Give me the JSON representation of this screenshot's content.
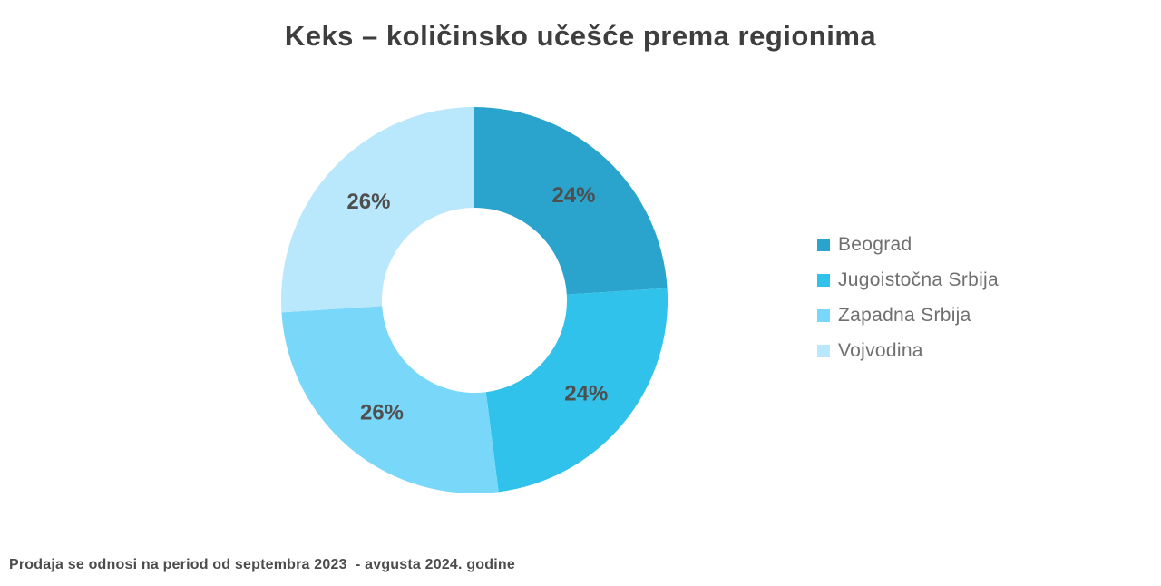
{
  "title": "Keks – količinsko učešće prema regionima",
  "footnote": "Prodaja se odnosi na period od septembra 2023  - avgusta 2024. godine",
  "chart_data": {
    "type": "pie",
    "subtype": "donut",
    "title": "Keks – količinsko učešće prema regionima",
    "categories": [
      "Beograd",
      "Jugoistočna Srbija",
      "Zapadna Srbija",
      "Vojvodina"
    ],
    "values": [
      24,
      24,
      26,
      26
    ],
    "labels": [
      "24%",
      "24%",
      "26%",
      "26%"
    ],
    "unit": "%",
    "colors": [
      "#2AA4CD",
      "#31C2EB",
      "#79D7FA",
      "#B9E7FC"
    ],
    "label_color": "#4F4F4F",
    "start_angle_deg": 0,
    "direction": "clockwise",
    "inner_radius_ratio": 0.48,
    "legend_position": "right",
    "source_note": "Prodaja se odnosi na period od septembra 2023  - avgusta 2024. godine"
  }
}
